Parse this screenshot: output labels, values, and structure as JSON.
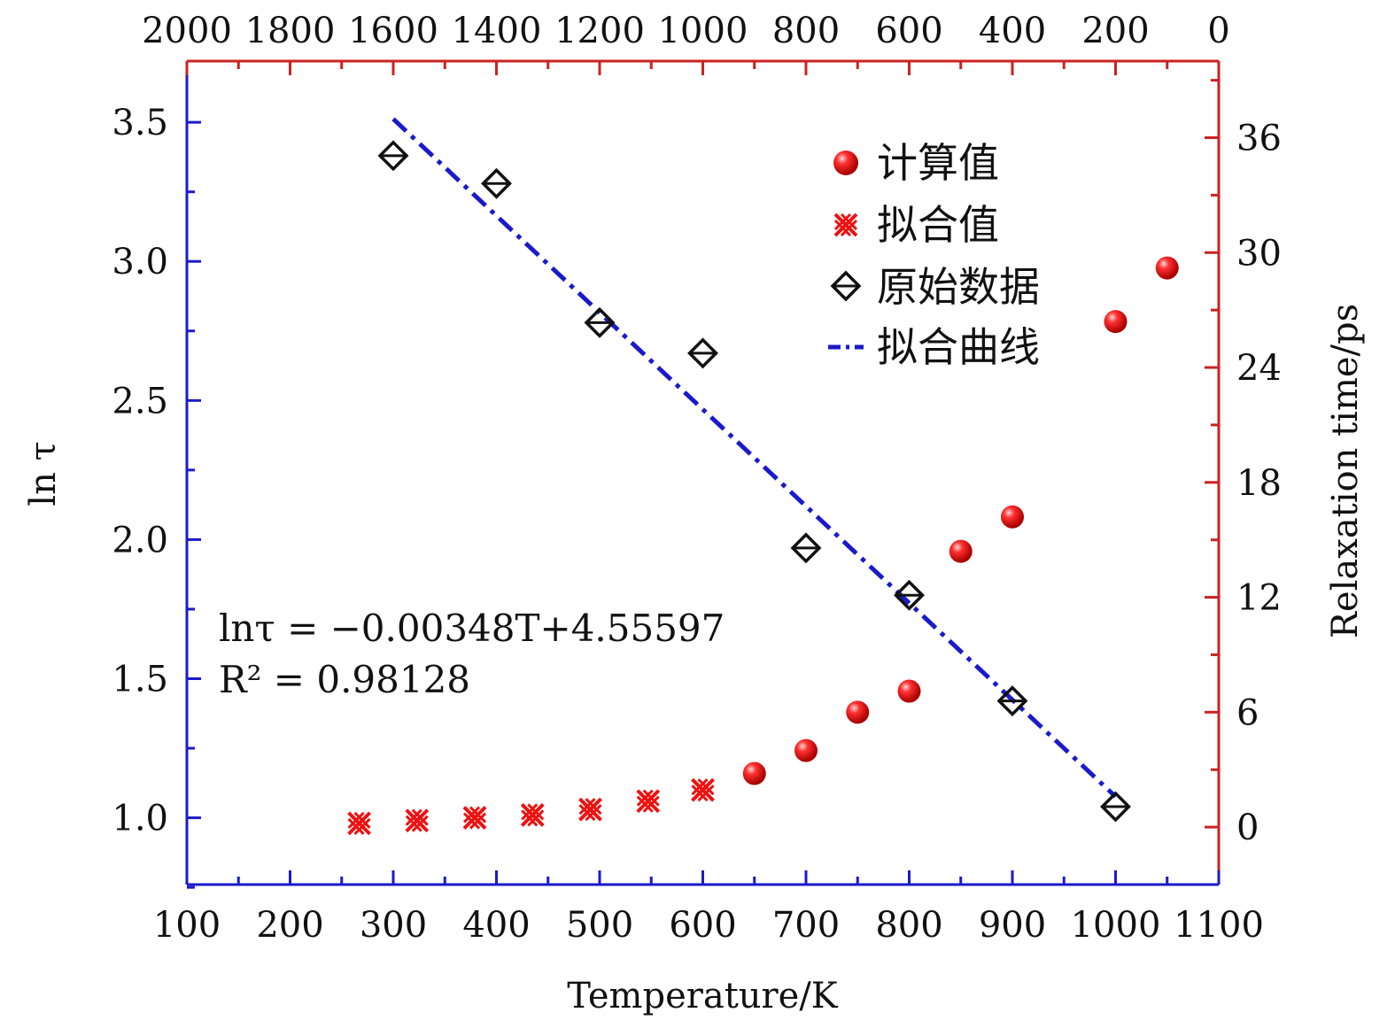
{
  "chart_data": {
    "type": "scatter",
    "bottom_axis": {
      "label": "Temperature/K",
      "range": [
        100,
        1100
      ],
      "ticks": [
        "100",
        "200",
        "300",
        "400",
        "500",
        "600",
        "700",
        "800",
        "900",
        "1000",
        "1100"
      ]
    },
    "top_axis": {
      "range": [
        2000,
        0
      ],
      "ticks": [
        "2000",
        "1800",
        "1600",
        "1400",
        "1200",
        "1000",
        "800",
        "600",
        "400",
        "200",
        "0"
      ]
    },
    "left_axis": {
      "label": "ln τ",
      "range": [
        0.76,
        3.72
      ],
      "ticks": [
        "1.0",
        "1.5",
        "2.0",
        "2.5",
        "3.0",
        "3.5"
      ]
    },
    "right_axis": {
      "label": "Relaxation time/ps",
      "range": [
        -3,
        40
      ],
      "ticks": [
        "0",
        "6",
        "12",
        "18",
        "24",
        "30",
        "36"
      ]
    },
    "legend": {
      "position": "top-right",
      "entries": [
        "计算值",
        "拟合值",
        "原始数据",
        "拟合曲线"
      ]
    },
    "annotations": [
      "lnτ = −0.00348T+4.55597",
      "R² = 0.98128"
    ],
    "colors": {
      "computed": "#ee1111",
      "fitted": "#ee1111",
      "raw": "#111111",
      "fit_line": "#1a1acc",
      "left_axis": "#1a1acc",
      "right_axis": "#cc2222"
    },
    "series": [
      {
        "name": "计算值",
        "axes": "top-right",
        "x": [
          900,
          800,
          700,
          600,
          500,
          400,
          200,
          100
        ],
        "y": [
          2.8,
          4.0,
          6.0,
          7.1,
          14.4,
          16.2,
          26.4,
          29.2
        ]
      },
      {
        "name": "拟合值",
        "axes": "bottom-left",
        "x": [
          267,
          323,
          379,
          435,
          491,
          547,
          600
        ],
        "y": [
          0.98,
          0.99,
          1.0,
          1.01,
          1.03,
          1.06,
          1.1
        ]
      },
      {
        "name": "原始数据",
        "axes": "bottom-left",
        "x": [
          300,
          400,
          500,
          600,
          700,
          800,
          900,
          1000
        ],
        "y": [
          3.38,
          3.28,
          2.78,
          2.67,
          1.97,
          1.8,
          1.42,
          1.04
        ]
      },
      {
        "name": "拟合曲线",
        "axes": "bottom-left",
        "x": [
          300,
          1000
        ],
        "y": [
          3.512,
          1.076
        ]
      }
    ]
  }
}
